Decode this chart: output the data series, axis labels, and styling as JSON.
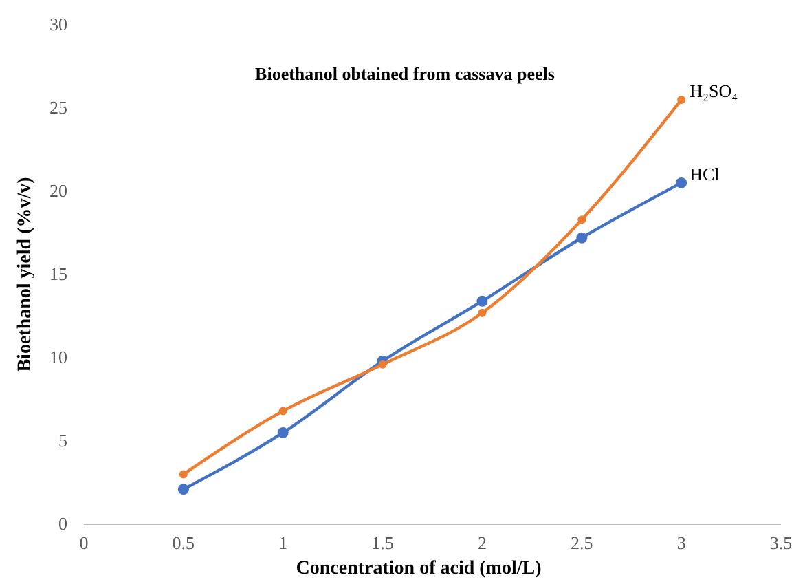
{
  "chart_data": {
    "type": "line",
    "title": "Bioethanol obtained from cassava peels",
    "xlabel": "Concentration of acid (mol/L)",
    "ylabel": "Bioethanol yield (%v/v)",
    "x": [
      0.5,
      1,
      1.5,
      2,
      2.5,
      3
    ],
    "series": [
      {
        "name": "HCl",
        "color": "#4472c4",
        "values": [
          2.1,
          5.5,
          9.8,
          13.4,
          17.2,
          20.5
        ]
      },
      {
        "name": "H₂SO₄",
        "color": "#ed7d31",
        "values": [
          3.0,
          6.8,
          9.6,
          12.7,
          18.3,
          25.5
        ]
      }
    ],
    "xlim": [
      0,
      3.5
    ],
    "xticks": [
      0,
      0.5,
      1,
      1.5,
      2,
      2.5,
      3,
      3.5
    ],
    "ylim": [
      0,
      30
    ],
    "yticks": [
      0,
      5,
      10,
      15,
      20,
      25,
      30
    ],
    "marker": "circle",
    "line_style": "solid"
  }
}
